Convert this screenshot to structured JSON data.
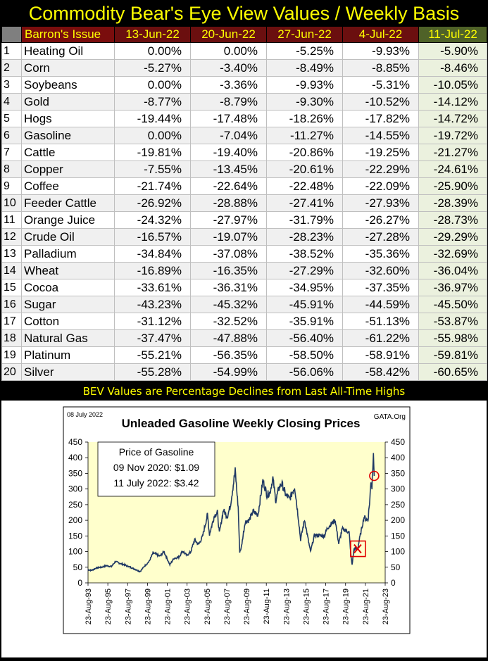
{
  "title": "Commodity Bear's Eye View Values / Weekly Basis",
  "table": {
    "headers": [
      "Barron's Issue",
      "13-Jun-22",
      "20-Jun-22",
      "27-Jun-22",
      "4-Jul-22",
      "11-Jul-22"
    ],
    "rows": [
      {
        "n": "1",
        "name": "Heating Oil",
        "v": [
          "0.00%",
          "0.00%",
          "-5.25%",
          "-9.93%",
          "-5.90%"
        ]
      },
      {
        "n": "2",
        "name": "Corn",
        "v": [
          "-5.27%",
          "-3.40%",
          "-8.49%",
          "-8.85%",
          "-8.46%"
        ]
      },
      {
        "n": "3",
        "name": "Soybeans",
        "v": [
          "0.00%",
          "-3.36%",
          "-9.93%",
          "-5.31%",
          "-10.05%"
        ]
      },
      {
        "n": "4",
        "name": "Gold",
        "v": [
          "-8.77%",
          "-8.79%",
          "-9.30%",
          "-10.52%",
          "-14.12%"
        ]
      },
      {
        "n": "5",
        "name": "Hogs",
        "v": [
          "-19.44%",
          "-17.48%",
          "-18.26%",
          "-17.82%",
          "-14.72%"
        ]
      },
      {
        "n": "6",
        "name": "Gasoline",
        "v": [
          "0.00%",
          "-7.04%",
          "-11.27%",
          "-14.55%",
          "-19.72%"
        ]
      },
      {
        "n": "7",
        "name": "Cattle",
        "v": [
          "-19.81%",
          "-19.40%",
          "-20.86%",
          "-19.25%",
          "-21.27%"
        ]
      },
      {
        "n": "8",
        "name": "Copper",
        "v": [
          "-7.55%",
          "-13.45%",
          "-20.61%",
          "-22.29%",
          "-24.61%"
        ]
      },
      {
        "n": "9",
        "name": "Coffee",
        "v": [
          "-21.74%",
          "-22.64%",
          "-22.48%",
          "-22.09%",
          "-25.90%"
        ]
      },
      {
        "n": "10",
        "name": "Feeder Cattle",
        "v": [
          "-26.92%",
          "-28.88%",
          "-27.41%",
          "-27.93%",
          "-28.39%"
        ]
      },
      {
        "n": "11",
        "name": "Orange Juice",
        "v": [
          "-24.32%",
          "-27.97%",
          "-31.79%",
          "-26.27%",
          "-28.73%"
        ]
      },
      {
        "n": "12",
        "name": "Crude Oil",
        "v": [
          "-16.57%",
          "-19.07%",
          "-28.23%",
          "-27.28%",
          "-29.29%"
        ]
      },
      {
        "n": "13",
        "name": "Palladium",
        "v": [
          "-34.84%",
          "-37.08%",
          "-38.52%",
          "-35.36%",
          "-32.69%"
        ]
      },
      {
        "n": "14",
        "name": "Wheat",
        "v": [
          "-16.89%",
          "-16.35%",
          "-27.29%",
          "-32.60%",
          "-36.04%"
        ]
      },
      {
        "n": "15",
        "name": "Cocoa",
        "v": [
          "-33.61%",
          "-36.31%",
          "-34.95%",
          "-37.35%",
          "-36.97%"
        ]
      },
      {
        "n": "16",
        "name": "Sugar",
        "v": [
          "-43.23%",
          "-45.32%",
          "-45.91%",
          "-44.59%",
          "-45.50%"
        ]
      },
      {
        "n": "17",
        "name": "Cotton",
        "v": [
          "-31.12%",
          "-32.52%",
          "-35.91%",
          "-51.13%",
          "-53.87%"
        ]
      },
      {
        "n": "18",
        "name": "Natural Gas",
        "v": [
          "-37.47%",
          "-47.88%",
          "-56.40%",
          "-61.22%",
          "-55.98%"
        ]
      },
      {
        "n": "19",
        "name": "Platinum",
        "v": [
          "-55.21%",
          "-56.35%",
          "-58.50%",
          "-58.91%",
          "-59.81%"
        ]
      },
      {
        "n": "20",
        "name": "Silver",
        "v": [
          "-55.28%",
          "-54.99%",
          "-56.06%",
          "-58.42%",
          "-60.65%"
        ]
      }
    ]
  },
  "caption": "BEV Values are Percentage Declines from Last All-Time Highs",
  "colors": {
    "title_text": "#ffff00",
    "header_bg": "#6b0f0f",
    "last_header_bg": "#4f6228",
    "last_col_bg": "#ebf1de",
    "plot_bg": "#ffffcc",
    "line": "#1f3864",
    "marker": "#e00000"
  },
  "chart_data": {
    "type": "line",
    "title": "Unleaded Gasoline Weekly Closing Prices",
    "date_label": "08 July 2022",
    "source": "GATA.Org",
    "annotation": [
      "Price of Gasoline",
      "09 Nov 2020: $1.09",
      "11 July 2022: $3.42"
    ],
    "ylim": [
      0,
      450
    ],
    "yticks": [
      "0",
      "50",
      "100",
      "150",
      "200",
      "250",
      "300",
      "350",
      "400",
      "450"
    ],
    "xticks": [
      "23-Aug-93",
      "23-Aug-95",
      "23-Aug-97",
      "23-Aug-99",
      "23-Aug-01",
      "23-Aug-03",
      "23-Aug-05",
      "23-Aug-07",
      "23-Aug-09",
      "23-Aug-11",
      "23-Aug-13",
      "23-Aug-15",
      "23-Aug-17",
      "23-Aug-19",
      "23-Aug-21",
      "23-Aug-23"
    ],
    "x_range_years": [
      1993.64,
      2023.64
    ],
    "series": [
      {
        "points": [
          [
            1993.64,
            42
          ],
          [
            1994.0,
            40
          ],
          [
            1994.5,
            48
          ],
          [
            1995.0,
            50
          ],
          [
            1995.5,
            55
          ],
          [
            1996.0,
            52
          ],
          [
            1996.4,
            68
          ],
          [
            1996.9,
            62
          ],
          [
            1997.3,
            58
          ],
          [
            1997.9,
            50
          ],
          [
            1998.5,
            42
          ],
          [
            1998.9,
            36
          ],
          [
            1999.3,
            52
          ],
          [
            1999.8,
            68
          ],
          [
            2000.2,
            95
          ],
          [
            2000.5,
            92
          ],
          [
            2000.9,
            85
          ],
          [
            2001.3,
            100
          ],
          [
            2001.7,
            72
          ],
          [
            2001.9,
            58
          ],
          [
            2002.3,
            78
          ],
          [
            2002.8,
            82
          ],
          [
            2003.2,
            102
          ],
          [
            2003.6,
            88
          ],
          [
            2004.0,
            98
          ],
          [
            2004.4,
            138
          ],
          [
            2004.8,
            122
          ],
          [
            2005.2,
            148
          ],
          [
            2005.7,
            218
          ],
          [
            2005.9,
            155
          ],
          [
            2006.4,
            215
          ],
          [
            2006.7,
            225
          ],
          [
            2006.9,
            158
          ],
          [
            2007.3,
            232
          ],
          [
            2007.7,
            212
          ],
          [
            2008.0,
            245
          ],
          [
            2008.5,
            358
          ],
          [
            2008.8,
            240
          ],
          [
            2008.95,
            100
          ],
          [
            2009.1,
            110
          ],
          [
            2009.5,
            195
          ],
          [
            2009.9,
            200
          ],
          [
            2010.3,
            228
          ],
          [
            2010.8,
            218
          ],
          [
            2011.3,
            328
          ],
          [
            2011.7,
            282
          ],
          [
            2012.0,
            288
          ],
          [
            2012.3,
            335
          ],
          [
            2012.6,
            262
          ],
          [
            2012.9,
            302
          ],
          [
            2013.2,
            318
          ],
          [
            2013.6,
            282
          ],
          [
            2014.0,
            268
          ],
          [
            2014.5,
            308
          ],
          [
            2014.9,
            200
          ],
          [
            2015.1,
            138
          ],
          [
            2015.5,
            202
          ],
          [
            2015.9,
            132
          ],
          [
            2016.1,
            100
          ],
          [
            2016.5,
            152
          ],
          [
            2017.0,
            152
          ],
          [
            2017.5,
            150
          ],
          [
            2017.8,
            175
          ],
          [
            2018.3,
            192
          ],
          [
            2018.6,
            200
          ],
          [
            2018.95,
            125
          ],
          [
            2019.3,
            172
          ],
          [
            2019.7,
            168
          ],
          [
            2020.0,
            160
          ],
          [
            2020.2,
            82
          ],
          [
            2020.3,
            58
          ],
          [
            2020.5,
            110
          ],
          [
            2020.86,
            109
          ],
          [
            2021.1,
            148
          ],
          [
            2021.5,
            210
          ],
          [
            2021.9,
            200
          ],
          [
            2022.1,
            270
          ],
          [
            2022.2,
            328
          ],
          [
            2022.3,
            305
          ],
          [
            2022.45,
            425
          ],
          [
            2022.53,
            342
          ]
        ]
      }
    ],
    "highlights": [
      {
        "type": "box",
        "x": 2020.86,
        "y": 109,
        "label": "09 Nov 2020"
      },
      {
        "type": "circle",
        "x": 2022.53,
        "y": 342,
        "label": "11 July 2022"
      }
    ]
  }
}
